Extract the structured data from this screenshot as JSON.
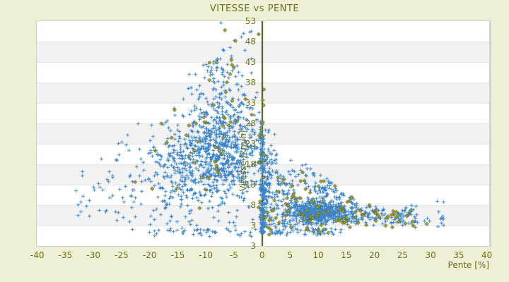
{
  "page": {
    "background": "#edf0d5"
  },
  "chart": {
    "title": "VITESSE vs PENTE",
    "x_axis": {
      "label": "Pente [%]",
      "ticks": [
        "-40",
        "-35",
        "-30",
        "-25",
        "-20",
        "-15",
        "-10",
        "-5",
        "0",
        "5",
        "10",
        "15",
        "20",
        "25",
        "30",
        "35",
        "40"
      ],
      "min": -40,
      "max": 40
    },
    "y_axis": {
      "label": "Vitesse [km/h]",
      "ticks": [
        "53",
        "48",
        "43",
        "38",
        "33",
        "28",
        "23",
        "18",
        "13",
        "8",
        "3"
      ],
      "bottom_edge_label": "3",
      "top_value": 53,
      "bottom_value": -2
    },
    "colors": {
      "text_olive": "#6b721c",
      "axis_line": "#454b12",
      "band_white": "#ffffff",
      "band_gray": "#f2f2f2",
      "gridline": "#e3e3e3",
      "plot_border": "#d3d3d3",
      "series_blue": "#3e86c8",
      "series_olive_fill": "#a3a832",
      "series_olive_stroke": "#5a6014"
    }
  },
  "chart_data": {
    "type": "scatter",
    "title": "VITESSE vs PENTE",
    "xlabel": "Pente [%]",
    "ylabel": "Vitesse [km/h]",
    "xlim": [
      -40,
      40
    ],
    "ylim": [
      -2,
      53
    ],
    "grid": "horizontal-bands",
    "legend": "none",
    "series": [
      {
        "name": "points-blue",
        "marker": "plus",
        "color": "#3e86c8"
      },
      {
        "name": "points-olive",
        "marker": "diamond",
        "color": "#a3a832"
      }
    ],
    "estimated_clusters": [
      {
        "series": 0,
        "count": 540,
        "x": {
          "dist": "normal",
          "mean": -7.5,
          "sd": 4.3,
          "min": -23,
          "max": -0.4
        },
        "y": {
          "dist": "normal",
          "mean": 21,
          "sd": 5.5,
          "min": 2.5,
          "max": 41
        },
        "env": {
          "a": 53.5,
          "b": 1.15
        }
      },
      {
        "series": 0,
        "count": 340,
        "x": {
          "dist": "normal",
          "mean": -13,
          "sd": 6,
          "min": -34,
          "max": -2
        },
        "y": {
          "dist": "normal",
          "mean": 15,
          "sd": 6,
          "min": 2,
          "max": 34
        },
        "env": {
          "a": 53.5,
          "b": 1.15
        }
      },
      {
        "series": 0,
        "count": 150,
        "x": {
          "dist": "normal",
          "mean": -7,
          "sd": 3,
          "min": -16,
          "max": -1
        },
        "y": {
          "dist": "normal",
          "mean": 32,
          "sd": 6,
          "min": 22,
          "max": 50
        },
        "env": {
          "a": 54,
          "b": 1.1
        }
      },
      {
        "series": 0,
        "count": 28,
        "x": {
          "dist": "normal",
          "mean": -7,
          "sd": 2.8,
          "min": -13,
          "max": -2
        },
        "y": {
          "dist": "uniform",
          "min": 40,
          "max": 52
        },
        "env": {
          "a": 54.5,
          "b": 1.2
        }
      },
      {
        "series": 0,
        "count": 42,
        "x": {
          "dist": "uniform",
          "min": -21,
          "max": -1
        },
        "y": {
          "dist": "normal",
          "mean": 1.6,
          "sd": 0.7,
          "min": 0.4,
          "max": 3.1
        }
      },
      {
        "series": 0,
        "count": 28,
        "x": {
          "dist": "uniform",
          "min": -34,
          "max": -23
        },
        "y": {
          "dist": "normal",
          "mean": 9,
          "sd": 3.5,
          "min": 1.8,
          "max": 16
        },
        "env": {
          "a": 53.5,
          "b": 1.15
        }
      },
      {
        "series": 0,
        "count": 160,
        "x": {
          "dist": "normal",
          "mean": 0,
          "sd": 0.18,
          "min": -0.45,
          "max": 0.45
        },
        "y": {
          "dist": "powlow",
          "min": 1,
          "max": 25,
          "pow": 1.5
        }
      },
      {
        "series": 0,
        "count": 520,
        "x": {
          "dist": "normal",
          "mean": 9.5,
          "sd": 2.6,
          "min": 3.5,
          "max": 16
        },
        "y": {
          "dist": "normal",
          "mean": 6.3,
          "sd": 1.3,
          "min": 3.6,
          "max": 10
        }
      },
      {
        "series": 0,
        "count": 320,
        "x": {
          "dist": "powlow",
          "min": 0.3,
          "max": 17,
          "pow": 2.0
        },
        "y": {
          "dist": "normal",
          "mean": 11,
          "sd": 4.5,
          "min": 3.4,
          "max": 24
        },
        "env": {
          "a": 26,
          "b": -1.0
        }
      },
      {
        "series": 0,
        "count": 130,
        "x": {
          "dist": "uniform",
          "min": 14,
          "max": 27.5
        },
        "y": {
          "dist": "normal",
          "mean": 5.6,
          "sd": 1.1,
          "min": 3.2,
          "max": 8.3
        }
      },
      {
        "series": 0,
        "count": 14,
        "x": {
          "dist": "uniform",
          "min": 27,
          "max": 32.5
        },
        "y": {
          "dist": "normal",
          "mean": 4.6,
          "sd": 1.3,
          "min": 2.6,
          "max": 9.2
        }
      },
      {
        "series": 0,
        "count": 65,
        "x": {
          "dist": "powlow",
          "min": 1.5,
          "max": 14.5,
          "pow": 1.3
        },
        "y": {
          "dist": "normal",
          "mean": 1.7,
          "sd": 0.6,
          "min": 0.5,
          "max": 2.8
        }
      },
      {
        "series": 0,
        "count": 22,
        "x": {
          "dist": "normal",
          "mean": 1.0,
          "sd": 0.8,
          "min": 0.1,
          "max": 3
        },
        "y": {
          "dist": "uniform",
          "min": 18,
          "max": 27
        }
      },
      {
        "series": 1,
        "count": 68,
        "x": {
          "dist": "uniform",
          "min": 0.5,
          "max": 27
        },
        "y": {
          "dist": "normal",
          "mean": 5.3,
          "sd": 1.6,
          "min": 2.6,
          "max": 9
        }
      },
      {
        "series": 1,
        "count": 32,
        "x": {
          "dist": "normal",
          "mean": 8,
          "sd": 4.5,
          "min": 0.3,
          "max": 19
        },
        "y": {
          "dist": "normal",
          "mean": 10,
          "sd": 3,
          "min": 4,
          "max": 16
        },
        "env": {
          "a": 26,
          "b": -1.0
        }
      },
      {
        "series": 1,
        "count": 38,
        "x": {
          "dist": "normal",
          "mean": -9,
          "sd": 5.5,
          "min": -28,
          "max": -0.5
        },
        "y": {
          "dist": "normal",
          "mean": 21,
          "sd": 8,
          "min": 2,
          "max": 40
        },
        "env": {
          "a": 53.5,
          "b": 1.15
        }
      },
      {
        "series": 1,
        "count": 16,
        "x": {
          "dist": "normal",
          "mean": -5.5,
          "sd": 2.7,
          "min": -11,
          "max": -0.6
        },
        "y": {
          "dist": "uniform",
          "min": 27,
          "max": 51
        },
        "env": {
          "a": 54.5,
          "b": 1.2
        }
      },
      {
        "series": 1,
        "count": 14,
        "x": {
          "dist": "normal",
          "mean": 0,
          "sd": 0.3,
          "min": -0.7,
          "max": 0.7
        },
        "y": {
          "dist": "powlow",
          "min": 4,
          "max": 37,
          "pow": 1.1
        }
      },
      {
        "series": 1,
        "count": 8,
        "x": {
          "dist": "uniform",
          "min": -5,
          "max": 12
        },
        "y": {
          "dist": "normal",
          "mean": 1.8,
          "sd": 0.6,
          "min": 0.8,
          "max": 2.9
        }
      }
    ],
    "highlight_points": [
      {
        "series": 0,
        "x": -7.4,
        "y": 52.6
      },
      {
        "series": 0,
        "x": 31.2,
        "y": 2.9
      },
      {
        "series": 0,
        "x": 32.3,
        "y": 3.1
      },
      {
        "series": 0,
        "x": 31.1,
        "y": 9.0
      },
      {
        "series": 0,
        "x": 32.2,
        "y": 8.9
      },
      {
        "series": 0,
        "x": 23.3,
        "y": 3.8
      },
      {
        "series": 0,
        "x": 24.6,
        "y": 4.0
      },
      {
        "series": 1,
        "x": -6.6,
        "y": 50.8
      },
      {
        "series": 1,
        "x": 29.3,
        "y": 3.4
      },
      {
        "series": 1,
        "x": 26.8,
        "y": 4.0
      }
    ]
  }
}
